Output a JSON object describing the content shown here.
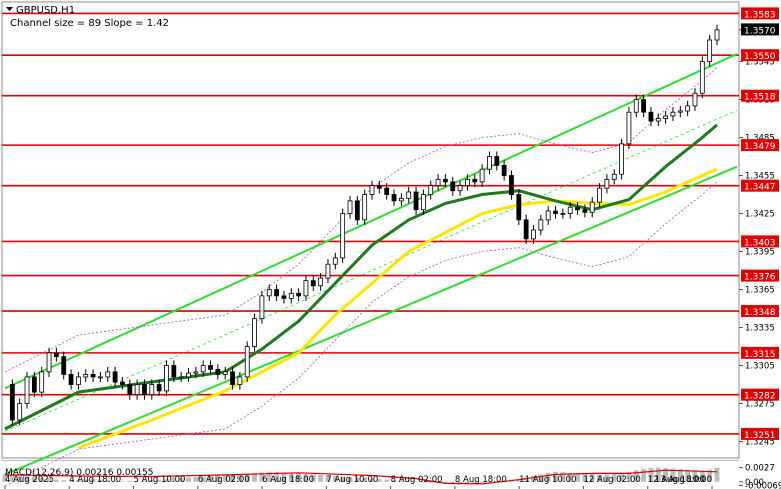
{
  "header": {
    "symbol": "GBPUSD,H1",
    "channel_info": "Channel size = 89 Slope = 1.42"
  },
  "chart_data": {
    "type": "candlestick",
    "symbol": "GBPUSD",
    "timeframe": "H1",
    "price_axis": {
      "ylim": [
        1.3232,
        1.3592
      ],
      "ticks": [
        "1.3570",
        "1.3545",
        "1.3515",
        "1.3485",
        "1.3455",
        "1.3425",
        "1.3395",
        "1.3365",
        "1.3335",
        "1.3305",
        "1.3275",
        "1.3245"
      ]
    },
    "time_axis": {
      "labels": [
        "4 Aug 2025",
        "4 Aug 18:00",
        "5 Aug 10:00",
        "6 Aug 02:00",
        "6 Aug 18:00",
        "7 Aug 10:00",
        "8 Aug 02:00",
        "8 Aug 18:00",
        "11 Aug 10:00",
        "12 Aug 02:00",
        "12 Aug 18:00",
        "13 Aug 10:00"
      ]
    },
    "horizontal_levels": [
      1.3583,
      1.355,
      1.3518,
      1.3479,
      1.3447,
      1.3403,
      1.3376,
      1.3348,
      1.3315,
      1.3282,
      1.3251
    ],
    "level_labels": [
      "1.3583",
      "1.3550",
      "1.3518",
      "1.3479",
      "1.3447",
      "1.3403",
      "1.3376",
      "1.3348",
      "1.3315",
      "1.3282",
      "1.3251"
    ],
    "current_price": "1.3570",
    "channel": {
      "upper": [
        [
          0,
          1.3287
        ],
        [
          100,
          1.3551
        ]
      ],
      "lower": [
        [
          0,
          1.3219
        ],
        [
          100,
          1.3462
        ]
      ]
    },
    "price_path": [
      [
        0,
        1.329
      ],
      [
        1,
        1.3262
      ],
      [
        2,
        1.3275
      ],
      [
        3,
        1.3296
      ],
      [
        4,
        1.3284
      ],
      [
        5,
        1.33
      ],
      [
        6,
        1.3315
      ],
      [
        7,
        1.3312
      ],
      [
        8,
        1.3298
      ],
      [
        9,
        1.329
      ],
      [
        10,
        1.3296
      ],
      [
        11,
        1.3298
      ],
      [
        12,
        1.3296
      ],
      [
        13,
        1.3296
      ],
      [
        14,
        1.33
      ],
      [
        15,
        1.3292
      ],
      [
        16,
        1.329
      ],
      [
        17,
        1.3282
      ],
      [
        18,
        1.329
      ],
      [
        19,
        1.3282
      ],
      [
        20,
        1.329
      ],
      [
        21,
        1.3285
      ],
      [
        22,
        1.3305
      ],
      [
        23,
        1.3296
      ],
      [
        24,
        1.3296
      ],
      [
        25,
        1.3299
      ],
      [
        26,
        1.33
      ],
      [
        27,
        1.3305
      ],
      [
        28,
        1.3302
      ],
      [
        29,
        1.3298
      ],
      [
        30,
        1.33
      ],
      [
        31,
        1.329
      ],
      [
        32,
        1.3296
      ],
      [
        33,
        1.332
      ],
      [
        34,
        1.3342
      ],
      [
        35,
        1.336
      ],
      [
        36,
        1.3365
      ],
      [
        37,
        1.336
      ],
      [
        38,
        1.3358
      ],
      [
        39,
        1.3362
      ],
      [
        40,
        1.336
      ],
      [
        41,
        1.3372
      ],
      [
        42,
        1.3368
      ],
      [
        43,
        1.3374
      ],
      [
        44,
        1.3385
      ],
      [
        45,
        1.339
      ],
      [
        46,
        1.3425
      ],
      [
        47,
        1.3435
      ],
      [
        48,
        1.342
      ],
      [
        49,
        1.344
      ],
      [
        50,
        1.3447
      ],
      [
        51,
        1.3445
      ],
      [
        52,
        1.344
      ],
      [
        53,
        1.3435
      ],
      [
        54,
        1.3437
      ],
      [
        55,
        1.3442
      ],
      [
        56,
        1.3428
      ],
      [
        57,
        1.344
      ],
      [
        58,
        1.3447
      ],
      [
        59,
        1.3452
      ],
      [
        60,
        1.345
      ],
      [
        61,
        1.3443
      ],
      [
        62,
        1.3447
      ],
      [
        63,
        1.3452
      ],
      [
        64,
        1.345
      ],
      [
        65,
        1.346
      ],
      [
        66,
        1.347
      ],
      [
        67,
        1.3463
      ],
      [
        68,
        1.3455
      ],
      [
        69,
        1.344
      ],
      [
        70,
        1.342
      ],
      [
        71,
        1.3405
      ],
      [
        72,
        1.3412
      ],
      [
        73,
        1.342
      ],
      [
        74,
        1.3427
      ],
      [
        75,
        1.3425
      ],
      [
        76,
        1.3425
      ],
      [
        77,
        1.343
      ],
      [
        78,
        1.3428
      ],
      [
        79,
        1.3426
      ],
      [
        80,
        1.3434
      ],
      [
        81,
        1.3445
      ],
      [
        82,
        1.3452
      ],
      [
        83,
        1.3456
      ],
      [
        84,
        1.348
      ],
      [
        85,
        1.3505
      ],
      [
        86,
        1.3515
      ],
      [
        87,
        1.3505
      ],
      [
        88,
        1.3498
      ],
      [
        89,
        1.35
      ],
      [
        90,
        1.3502
      ],
      [
        91,
        1.3505
      ],
      [
        92,
        1.3506
      ],
      [
        93,
        1.351
      ],
      [
        94,
        1.352
      ],
      [
        95,
        1.3545
      ],
      [
        96,
        1.3562
      ],
      [
        97,
        1.357
      ]
    ],
    "sma_fast_green": [
      [
        0,
        1.3255
      ],
      [
        10,
        1.3284
      ],
      [
        20,
        1.3292
      ],
      [
        30,
        1.33
      ],
      [
        35,
        1.3318
      ],
      [
        40,
        1.334
      ],
      [
        45,
        1.337
      ],
      [
        50,
        1.34
      ],
      [
        55,
        1.342
      ],
      [
        60,
        1.3433
      ],
      [
        65,
        1.344
      ],
      [
        70,
        1.3443
      ],
      [
        75,
        1.3435
      ],
      [
        80,
        1.3428
      ],
      [
        85,
        1.3436
      ],
      [
        90,
        1.3462
      ],
      [
        95,
        1.3485
      ],
      [
        97,
        1.3495
      ]
    ],
    "sma_slow_yellow": [
      [
        10,
        1.324
      ],
      [
        20,
        1.3262
      ],
      [
        30,
        1.3285
      ],
      [
        35,
        1.33
      ],
      [
        40,
        1.3315
      ],
      [
        45,
        1.3345
      ],
      [
        50,
        1.337
      ],
      [
        55,
        1.3395
      ],
      [
        60,
        1.341
      ],
      [
        65,
        1.3425
      ],
      [
        70,
        1.3432
      ],
      [
        75,
        1.3435
      ],
      [
        80,
        1.3433
      ],
      [
        85,
        1.3432
      ],
      [
        90,
        1.3442
      ],
      [
        95,
        1.3455
      ],
      [
        97,
        1.346
      ]
    ],
    "macd": {
      "label": "MACD(12,26,9) 0.00216 0.00155",
      "ticks": [
        "0.0027",
        "0.00",
        "-0.00069"
      ],
      "ylim": [
        -0.0008,
        0.003
      ],
      "histogram": [
        0.0014,
        0.0012,
        0.0011,
        0.001,
        0.0009,
        0.0008,
        0.0006,
        0.0004,
        0.0003,
        0.0002,
        0.0003,
        0.0004,
        0.0005,
        0.0004,
        0.0003,
        0.0002,
        0.0001,
        0.0002,
        0.0001,
        0.0002,
        0.0003,
        0.0004,
        0.0005,
        0.0006,
        0.0007,
        0.0008,
        0.0009,
        0.001,
        0.0011,
        0.0012,
        0.0013,
        0.0014,
        0.0015,
        0.0016,
        0.0017,
        0.0018,
        0.0019,
        0.0019,
        0.0018,
        0.0017,
        0.0016,
        0.0015,
        0.0014,
        0.0013,
        0.0012,
        0.0011,
        0.001,
        0.0009,
        0.0008,
        0.0007,
        0.0006,
        0.0005,
        0.0004,
        0.0003,
        0.0002,
        0.0001,
        0.0,
        -0.0001,
        -0.0002,
        -0.0003,
        -0.0004,
        -0.0005,
        -0.0005,
        -0.0004,
        -0.0003,
        -0.0002,
        -0.0001,
        0.0,
        0.0002,
        0.0004,
        0.0006,
        0.0008,
        0.0011,
        0.0014,
        0.0017,
        0.0019,
        0.0018,
        0.0017,
        0.0016,
        0.0015,
        0.0015,
        0.0014,
        0.0014,
        0.0015,
        0.0017,
        0.0019,
        0.0022,
        0.0024,
        0.0026,
        0.0027,
        0.0026,
        0.0025,
        0.0024,
        0.0023,
        0.0022,
        0.0021,
        0.0023,
        0.0027
      ],
      "signal": [
        [
          0,
          0.0013
        ],
        [
          10,
          0.0011
        ],
        [
          20,
          0.001
        ],
        [
          30,
          0.0013
        ],
        [
          40,
          0.0017
        ],
        [
          50,
          0.0012
        ],
        [
          56,
          0.0006
        ],
        [
          60,
          -0.0003
        ],
        [
          65,
          -0.0004
        ],
        [
          70,
          0.0004
        ],
        [
          75,
          0.0014
        ],
        [
          80,
          0.0016
        ],
        [
          85,
          0.0016
        ],
        [
          90,
          0.0022
        ],
        [
          95,
          0.002
        ],
        [
          97,
          0.0019
        ]
      ]
    }
  }
}
